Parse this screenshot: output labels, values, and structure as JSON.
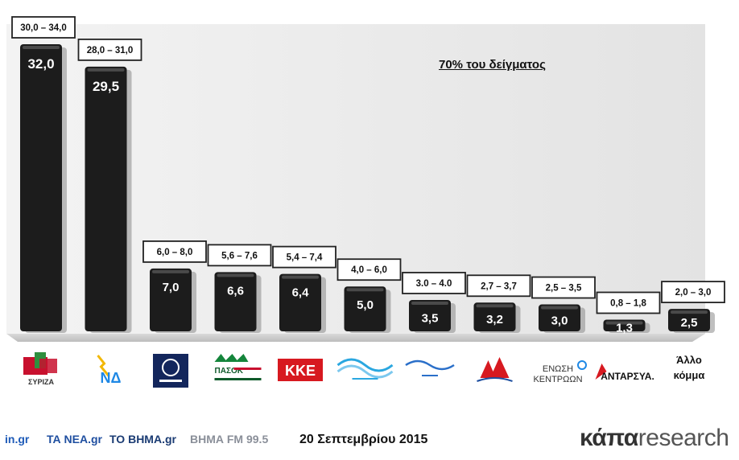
{
  "chart_data": {
    "type": "bar",
    "categories": [
      "ΣΥΡΙΖΑ",
      "ΝΔ",
      "Χρυσή Αυγή",
      "ΠΑΣΟΚ",
      "ΚΚΕ",
      "Το Ποτάμι",
      "ΑΝΕΛ",
      "ΛΑΕ",
      "ΕΝΩΣΗ ΚΕΝΤΡΩΩΝ",
      "ΑΝΤΑΡΣΥΑ",
      "Άλλο κόμμα"
    ],
    "values": [
      32.0,
      29.5,
      7.0,
      6.6,
      6.4,
      5.0,
      3.5,
      3.2,
      3.0,
      1.3,
      2.5
    ],
    "value_labels": [
      "32,0",
      "29,5",
      "7,0",
      "6,6",
      "6,4",
      "5,0",
      "3,5",
      "3,2",
      "3,0",
      "1,3",
      "2,5"
    ],
    "ranges": [
      "30,0 – 34,0",
      "28,0 – 31,0",
      "6,0 – 8,0",
      "5,6 – 7,6",
      "5,4 – 7,4",
      "4,0 – 6,0",
      "3.0 – 4.0",
      "2,7 – 3,7",
      "2,5 – 3,5",
      "0,8 – 1,8",
      "2,0 – 3,0"
    ],
    "ylim": [
      0,
      34
    ],
    "annotation": "70% του δείγματος"
  },
  "logos": [
    {
      "icon": "syriza-logo",
      "text": "ΣΥΡΙΖΑ"
    },
    {
      "icon": "nd-logo",
      "text": "ΝΔ"
    },
    {
      "icon": "golden-dawn-logo",
      "text": ""
    },
    {
      "icon": "pasok-logo",
      "text": "ΠΑΣΟΚ"
    },
    {
      "icon": "kke-logo",
      "text": "ΚΚΕ"
    },
    {
      "icon": "potami-logo",
      "text": ""
    },
    {
      "icon": "anel-logo",
      "text": ""
    },
    {
      "icon": "lae-logo",
      "text": ""
    },
    {
      "icon": "enosi-kentroon-logo",
      "text": "ΕΝΩΣΗ ΚΕΝΤΡΩΩΝ"
    },
    {
      "icon": "antarsya-logo",
      "text": "ΑΝΤΑΡΣΥΑ."
    },
    {
      "icon": "other-party-label",
      "text": "Άλλο κόμμα"
    }
  ],
  "footer": {
    "date": "20 Σεπτεμβρίου 2015",
    "media": [
      "in.gr",
      "ΤΑ ΝΕΑ.gr",
      "ΤΟ ΒΗΜΑ.gr",
      "ΒΗΜΑ FM 99.5"
    ],
    "brand_bold": "κάπα",
    "brand_light": "research"
  },
  "colors": {
    "bar": "#1c1c1c",
    "plot_bg": "#e9e9e9",
    "floor": "#cfcfcf",
    "syriza_red": "#c8102e",
    "syriza_green": "#2f8f3e",
    "nd_blue": "#1e88e5",
    "kke_red": "#d71920",
    "pasok_green": "#14853b"
  }
}
